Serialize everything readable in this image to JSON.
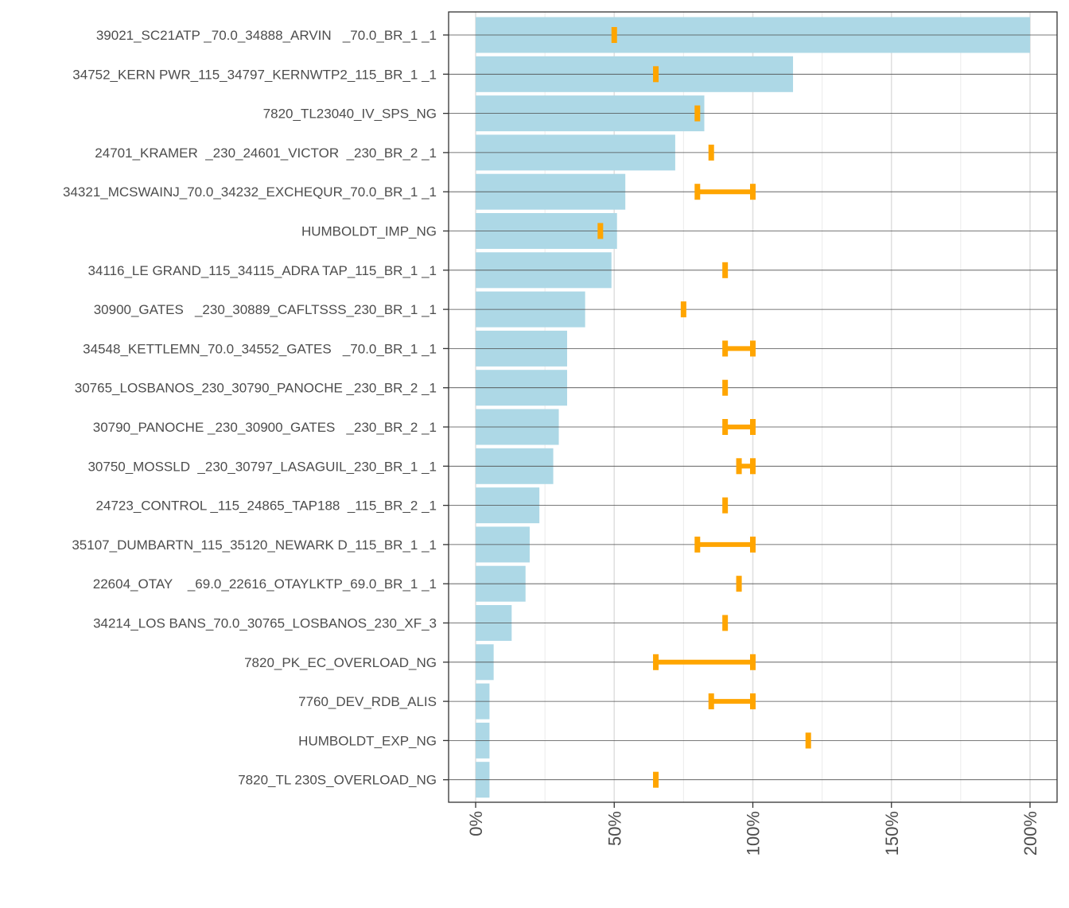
{
  "chart_data": {
    "type": "bar",
    "orientation": "horizontal",
    "title": "",
    "xlabel": "",
    "ylabel": "",
    "xlim": [
      0,
      200
    ],
    "x_ticks": [
      "0%",
      "50%",
      "100%",
      "150%",
      "200%"
    ],
    "grid": true,
    "categories": [
      "39021_SC21ATP _70.0_34888_ARVIN   _70.0_BR_1 _1",
      "34752_KERN PWR_115_34797_KERNWTP2_115_BR_1 _1",
      "7820_TL23040_IV_SPS_NG",
      "24701_KRAMER  _230_24601_VICTOR  _230_BR_2 _1",
      "34321_MCSWAINJ_70.0_34232_EXCHEQUR_70.0_BR_1 _1",
      "HUMBOLDT_IMP_NG",
      "34116_LE GRAND_115_34115_ADRA TAP_115_BR_1 _1",
      "30900_GATES   _230_30889_CAFLTSSS_230_BR_1 _1",
      "34548_KETTLEMN_70.0_34552_GATES   _70.0_BR_1 _1",
      "30765_LOSBANOS_230_30790_PANOCHE _230_BR_2 _1",
      "30790_PANOCHE _230_30900_GATES   _230_BR_2 _1",
      "30750_MOSSLD  _230_30797_LASAGUIL_230_BR_1 _1",
      "24723_CONTROL _115_24865_TAP188  _115_BR_2 _1",
      "35107_DUMBARTN_115_35120_NEWARK D_115_BR_1 _1",
      "22604_OTAY    _69.0_22616_OTAYLKTP_69.0_BR_1 _1",
      "34214_LOS BANS_70.0_30765_LOSBANOS_230_XF_3",
      "7820_PK_EC_OVERLOAD_NG",
      "7760_DEV_RDB_ALIS",
      "HUMBOLDT_EXP_NG",
      "7820_TL 230S_OVERLOAD_NG"
    ],
    "series": [
      {
        "name": "value",
        "color": "#add8e6",
        "values": [
          200,
          114.5,
          82.5,
          72,
          54,
          51,
          49,
          39.5,
          33,
          33,
          30,
          28,
          23,
          19.5,
          18,
          13,
          6.5,
          5,
          5,
          5
        ]
      },
      {
        "name": "range",
        "color": "#ffa500",
        "ranges": [
          [
            50,
            50
          ],
          [
            65,
            65
          ],
          [
            80,
            80
          ],
          [
            85,
            85
          ],
          [
            80,
            100
          ],
          [
            45,
            45
          ],
          [
            90,
            90
          ],
          [
            75,
            75
          ],
          [
            90,
            100
          ],
          [
            90,
            90
          ],
          [
            90,
            100
          ],
          [
            95,
            100
          ],
          [
            90,
            90
          ],
          [
            80,
            100
          ],
          [
            95,
            95
          ],
          [
            90,
            90
          ],
          [
            65,
            100
          ],
          [
            85,
            100
          ],
          [
            120,
            120
          ],
          [
            65,
            65
          ]
        ]
      }
    ]
  }
}
